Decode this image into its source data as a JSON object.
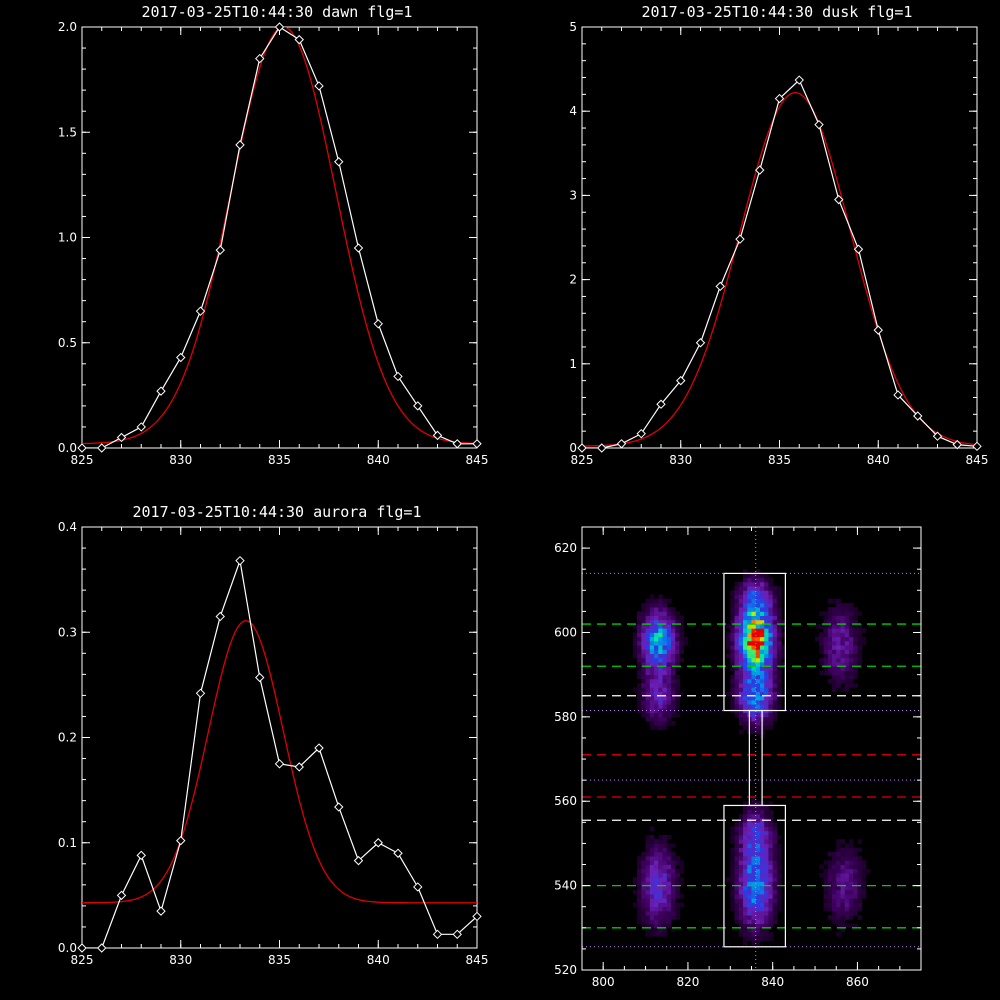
{
  "colors": {
    "background": "#000000",
    "data_line": "#ffffff",
    "fit_line": "#e00000",
    "green_line": "#00d000",
    "red_line": "#e00000",
    "white_line": "#ffffff",
    "dotted_line": "#c080ff"
  },
  "chart_data": [
    {
      "id": "dawn",
      "type": "line",
      "title": "2017-03-25T10:44:30 dawn flg=1",
      "xlim": [
        825,
        845
      ],
      "ylim": [
        0,
        2.0
      ],
      "xticks": [
        "825",
        "830",
        "835",
        "840",
        "845"
      ],
      "xtick_values": [
        825,
        830,
        835,
        840,
        845
      ],
      "yticks": [
        "0.0",
        "0.5",
        "1.0",
        "1.5",
        "2.0"
      ],
      "ytick_values": [
        0,
        0.5,
        1.0,
        1.5,
        2.0
      ],
      "series": [
        {
          "kind": "data",
          "marker": "diamond",
          "x": [
            825,
            826,
            827,
            828,
            829,
            830,
            831,
            832,
            833,
            834,
            835,
            836,
            837,
            838,
            839,
            840,
            841,
            842,
            843,
            844,
            845
          ],
          "y": [
            0.0,
            0.0,
            0.05,
            0.1,
            0.27,
            0.43,
            0.65,
            0.94,
            1.44,
            1.85,
            2.0,
            1.94,
            1.72,
            1.36,
            0.95,
            0.59,
            0.34,
            0.2,
            0.06,
            0.02,
            0.02
          ]
        },
        {
          "kind": "fit",
          "amplitude": 1.98,
          "center": 835.2,
          "sigma": 2.65,
          "offset": 0.02
        }
      ]
    },
    {
      "id": "dusk",
      "type": "line",
      "title": "2017-03-25T10:44:30 dusk flg=1",
      "xlim": [
        825,
        845
      ],
      "ylim": [
        0,
        5
      ],
      "xticks": [
        "825",
        "830",
        "835",
        "840",
        "845"
      ],
      "xtick_values": [
        825,
        830,
        835,
        840,
        845
      ],
      "yticks": [
        "0",
        "1",
        "2",
        "3",
        "4",
        "5"
      ],
      "ytick_values": [
        0,
        1,
        2,
        3,
        4,
        5
      ],
      "series": [
        {
          "kind": "data",
          "marker": "diamond",
          "x": [
            825,
            826,
            827,
            828,
            829,
            830,
            831,
            832,
            833,
            834,
            835,
            836,
            837,
            838,
            839,
            840,
            841,
            842,
            843,
            844,
            845
          ],
          "y": [
            0.0,
            0.0,
            0.05,
            0.17,
            0.52,
            0.8,
            1.25,
            1.92,
            2.48,
            3.3,
            4.15,
            4.37,
            3.84,
            2.95,
            2.36,
            1.4,
            0.63,
            0.38,
            0.14,
            0.04,
            0.02
          ]
        },
        {
          "kind": "fit",
          "amplitude": 4.2,
          "center": 835.8,
          "sigma": 2.8,
          "offset": 0.02
        }
      ]
    },
    {
      "id": "aurora",
      "type": "line",
      "title": "2017-03-25T10:44:30 aurora flg=1",
      "xlim": [
        825,
        845
      ],
      "ylim": [
        0,
        0.4
      ],
      "xticks": [
        "825",
        "830",
        "835",
        "840",
        "845"
      ],
      "xtick_values": [
        825,
        830,
        835,
        840,
        845
      ],
      "yticks": [
        "0.0",
        "0.1",
        "0.2",
        "0.3",
        "0.4"
      ],
      "ytick_values": [
        0,
        0.1,
        0.2,
        0.3,
        0.4
      ],
      "series": [
        {
          "kind": "data",
          "marker": "diamond",
          "x": [
            825,
            826,
            827,
            828,
            829,
            830,
            831,
            832,
            833,
            834,
            835,
            836,
            837,
            838,
            839,
            840,
            841,
            842,
            843,
            844,
            845
          ],
          "y": [
            0.0,
            0.0,
            0.05,
            0.088,
            0.035,
            0.102,
            0.242,
            0.315,
            0.368,
            0.257,
            0.175,
            0.172,
            0.19,
            0.134,
            0.083,
            0.1,
            0.09,
            0.058,
            0.013,
            0.013,
            0.03
          ]
        },
        {
          "kind": "fit",
          "amplitude": 0.268,
          "center": 833.3,
          "sigma": 1.9,
          "offset": 0.043
        }
      ]
    },
    {
      "id": "image",
      "type": "heatmap",
      "title": "",
      "xlim": [
        795,
        875
      ],
      "ylim": [
        520,
        625
      ],
      "xticks": [
        "800",
        "820",
        "840",
        "860"
      ],
      "xtick_values": [
        800,
        820,
        840,
        860
      ],
      "yticks": [
        "520",
        "540",
        "560",
        "580",
        "600",
        "620"
      ],
      "ytick_values": [
        520,
        540,
        560,
        580,
        600,
        620
      ],
      "sources": [
        {
          "x": 813,
          "y": 598,
          "sx": 2.6,
          "sy": 4.5,
          "amp": 0.55
        },
        {
          "x": 813,
          "y": 585,
          "sx": 2.5,
          "sy": 4.0,
          "amp": 0.25
        },
        {
          "x": 836,
          "y": 598,
          "sx": 2.6,
          "sy": 5.0,
          "amp": 1.0
        },
        {
          "x": 836,
          "y": 585,
          "sx": 2.6,
          "sy": 4.0,
          "amp": 0.5
        },
        {
          "x": 836,
          "y": 608,
          "sx": 2.5,
          "sy": 3.0,
          "amp": 0.35
        },
        {
          "x": 856,
          "y": 597,
          "sx": 2.8,
          "sy": 6.0,
          "amp": 0.2
        },
        {
          "x": 813,
          "y": 540,
          "sx": 2.6,
          "sy": 6.0,
          "amp": 0.3
        },
        {
          "x": 836,
          "y": 540,
          "sx": 2.6,
          "sy": 6.0,
          "amp": 0.5
        },
        {
          "x": 836,
          "y": 552,
          "sx": 2.5,
          "sy": 4.0,
          "amp": 0.3
        },
        {
          "x": 857,
          "y": 540,
          "sx": 2.8,
          "sy": 6.0,
          "amp": 0.17
        }
      ],
      "boxes": [
        {
          "x0": 828.5,
          "x1": 843,
          "y0": 581.5,
          "y1": 614
        },
        {
          "x0": 828.5,
          "x1": 843,
          "y0": 525.5,
          "y1": 559
        },
        {
          "x0": 834.5,
          "x1": 837.5,
          "y0": 559,
          "y1": 581.5
        }
      ],
      "hlines": [
        {
          "y": 614,
          "style": "dotted",
          "color": "dotted"
        },
        {
          "y": 602,
          "style": "dashed",
          "color": "green"
        },
        {
          "y": 592,
          "style": "dashed",
          "color": "green"
        },
        {
          "y": 585,
          "style": "dashed",
          "color": "white"
        },
        {
          "y": 581.5,
          "style": "dotted",
          "color": "dotted"
        },
        {
          "y": 571,
          "style": "dashed",
          "color": "red"
        },
        {
          "y": 565,
          "style": "dotted",
          "color": "dotted"
        },
        {
          "y": 561,
          "style": "dashed",
          "color": "red"
        },
        {
          "y": 555.5,
          "style": "dashed",
          "color": "white"
        },
        {
          "y": 540,
          "style": "dashed",
          "color": "green"
        },
        {
          "y": 530,
          "style": "dashed",
          "color": "green"
        },
        {
          "y": 525.5,
          "style": "dotted",
          "color": "dotted"
        }
      ],
      "vline": {
        "x": 836,
        "style": "dotted",
        "color": "dotted"
      }
    }
  ]
}
